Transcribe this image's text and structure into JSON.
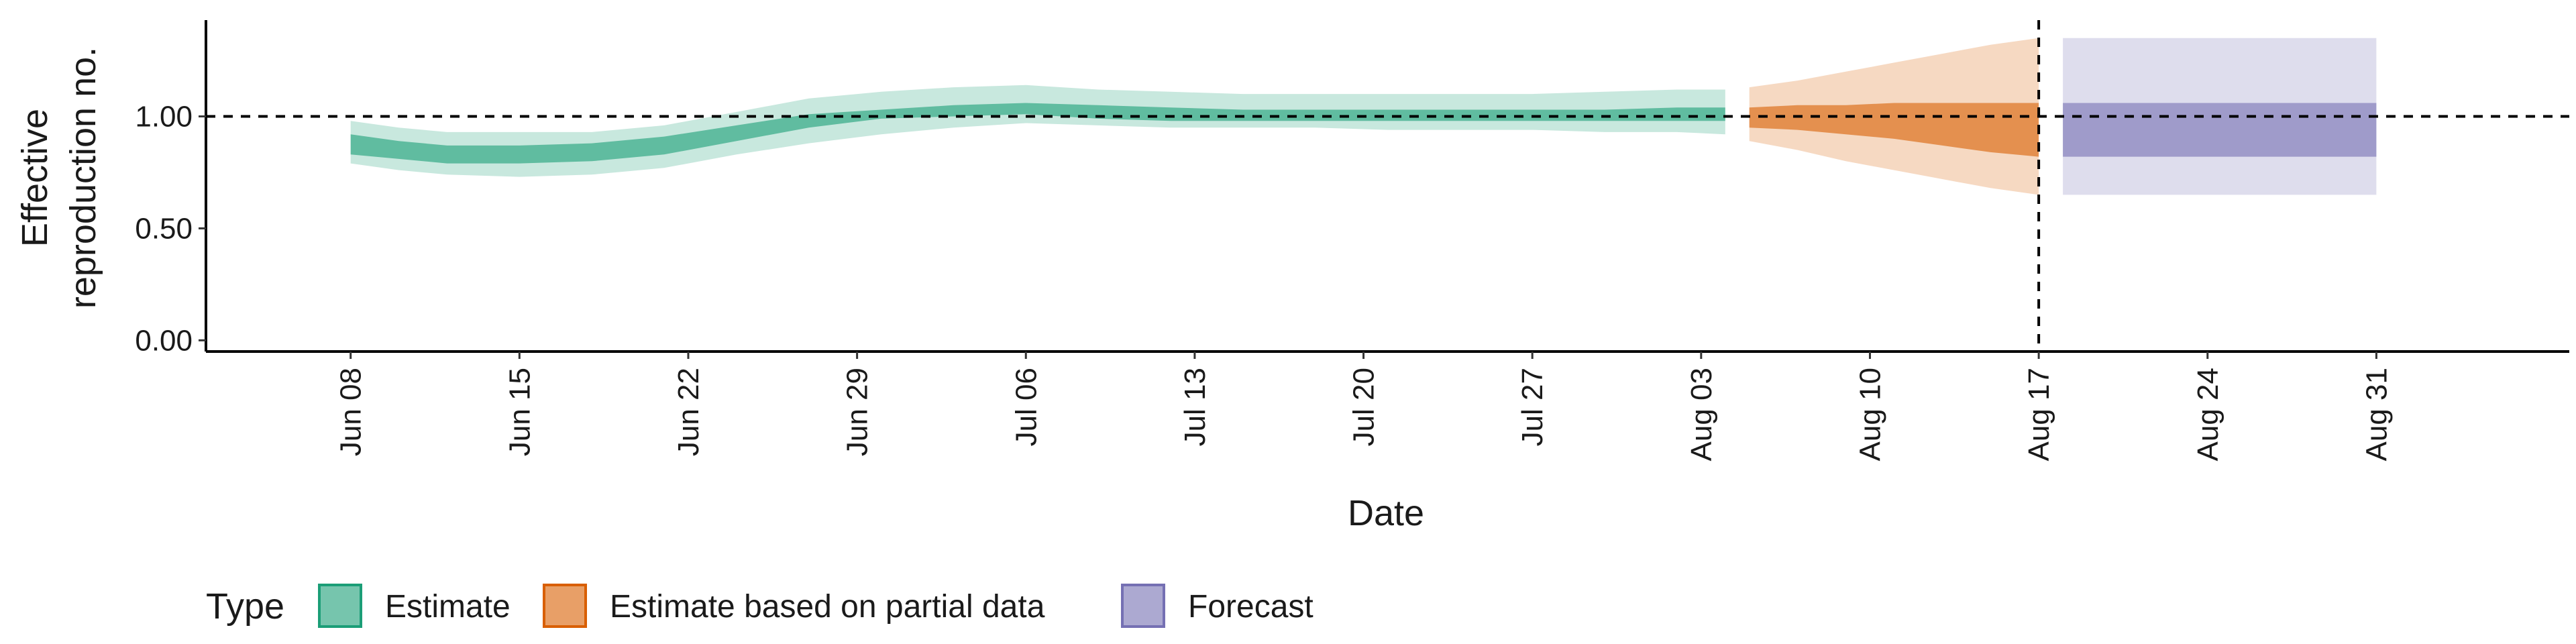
{
  "chart_data": {
    "type": "area",
    "xlabel": "Date",
    "ylabel": "Effective\nreproduction no.",
    "ylim": [
      -0.05,
      1.43
    ],
    "yticks": [
      {
        "value": 0.0,
        "label": "0.00"
      },
      {
        "value": 0.5,
        "label": "0.50"
      },
      {
        "value": 1.0,
        "label": "1.00"
      }
    ],
    "xlim": [
      "2020-06-02",
      "2020-09-08"
    ],
    "xticks": [
      {
        "date": "2020-06-08",
        "label": "Jun 08"
      },
      {
        "date": "2020-06-15",
        "label": "Jun 15"
      },
      {
        "date": "2020-06-22",
        "label": "Jun 22"
      },
      {
        "date": "2020-06-29",
        "label": "Jun 29"
      },
      {
        "date": "2020-07-06",
        "label": "Jul 06"
      },
      {
        "date": "2020-07-13",
        "label": "Jul 13"
      },
      {
        "date": "2020-07-20",
        "label": "Jul 20"
      },
      {
        "date": "2020-07-27",
        "label": "Jul 27"
      },
      {
        "date": "2020-08-03",
        "label": "Aug 03"
      },
      {
        "date": "2020-08-10",
        "label": "Aug 10"
      },
      {
        "date": "2020-08-17",
        "label": "Aug 17"
      },
      {
        "date": "2020-08-24",
        "label": "Aug 24"
      },
      {
        "date": "2020-08-31",
        "label": "Aug 31"
      }
    ],
    "reference_hline": 1.0,
    "reference_vline": "2020-08-17",
    "grid": false,
    "legend": {
      "title": "Type",
      "position": "bottom-left"
    },
    "series": [
      {
        "name": "Estimate",
        "color": "#1b9e77",
        "dates": [
          "2020-06-08",
          "2020-06-10",
          "2020-06-12",
          "2020-06-15",
          "2020-06-18",
          "2020-06-21",
          "2020-06-24",
          "2020-06-27",
          "2020-06-30",
          "2020-07-03",
          "2020-07-06",
          "2020-07-09",
          "2020-07-12",
          "2020-07-15",
          "2020-07-18",
          "2020-07-21",
          "2020-07-24",
          "2020-07-27",
          "2020-07-30",
          "2020-08-02",
          "2020-08-04"
        ],
        "outer_low": [
          0.79,
          0.76,
          0.74,
          0.73,
          0.74,
          0.77,
          0.83,
          0.88,
          0.92,
          0.95,
          0.97,
          0.96,
          0.95,
          0.95,
          0.95,
          0.94,
          0.94,
          0.94,
          0.93,
          0.93,
          0.92
        ],
        "inner_low": [
          0.83,
          0.81,
          0.79,
          0.79,
          0.8,
          0.83,
          0.89,
          0.95,
          0.99,
          1.0,
          1.01,
          0.99,
          0.98,
          0.98,
          0.98,
          0.98,
          0.98,
          0.98,
          0.98,
          0.98,
          0.98
        ],
        "inner_high": [
          0.92,
          0.89,
          0.87,
          0.87,
          0.88,
          0.91,
          0.96,
          1.01,
          1.03,
          1.05,
          1.06,
          1.05,
          1.04,
          1.03,
          1.03,
          1.03,
          1.03,
          1.03,
          1.03,
          1.04,
          1.04
        ],
        "outer_high": [
          0.98,
          0.95,
          0.93,
          0.93,
          0.93,
          0.96,
          1.02,
          1.08,
          1.11,
          1.13,
          1.14,
          1.12,
          1.11,
          1.1,
          1.1,
          1.1,
          1.1,
          1.1,
          1.11,
          1.12,
          1.12
        ]
      },
      {
        "name": "Estimate based on partial data",
        "color": "#d95f02",
        "dates": [
          "2020-08-05",
          "2020-08-07",
          "2020-08-09",
          "2020-08-11",
          "2020-08-13",
          "2020-08-15",
          "2020-08-17"
        ],
        "outer_low": [
          0.89,
          0.85,
          0.8,
          0.76,
          0.72,
          0.68,
          0.65
        ],
        "inner_low": [
          0.95,
          0.94,
          0.92,
          0.9,
          0.87,
          0.84,
          0.82
        ],
        "inner_high": [
          1.04,
          1.05,
          1.05,
          1.06,
          1.06,
          1.06,
          1.06
        ],
        "outer_high": [
          1.13,
          1.16,
          1.2,
          1.24,
          1.28,
          1.32,
          1.35
        ]
      },
      {
        "name": "Forecast",
        "color": "#7570b3",
        "dates": [
          "2020-08-18",
          "2020-08-31"
        ],
        "outer_low": [
          0.65,
          0.65
        ],
        "inner_low": [
          0.82,
          0.82
        ],
        "inner_high": [
          1.06,
          1.06
        ],
        "outer_high": [
          1.35,
          1.35
        ]
      }
    ]
  }
}
